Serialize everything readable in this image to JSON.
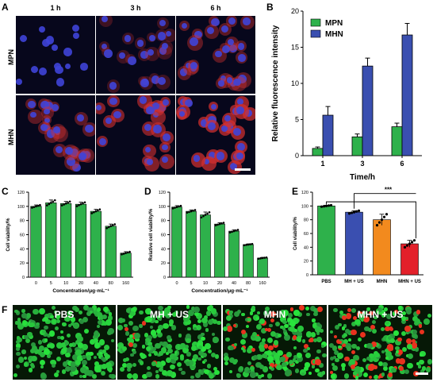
{
  "panels": {
    "A": {
      "label": "A",
      "columns": [
        "1 h",
        "3 h",
        "6 h"
      ],
      "rows": [
        "MPN",
        "MHN"
      ]
    },
    "B": {
      "label": "B"
    },
    "C": {
      "label": "C"
    },
    "D": {
      "label": "D"
    },
    "E": {
      "label": "E"
    },
    "F": {
      "label": "F",
      "columns": [
        "PBS",
        "MH + US",
        "MHN",
        "MHN + US"
      ]
    }
  },
  "colors": {
    "green": "#2eb14b",
    "blue": "#3a4fb0",
    "orange": "#f28a1e",
    "red": "#e3202a",
    "nucleus": "#3f44d8",
    "membrane": "#d43030"
  },
  "chart_data": [
    {
      "panel": "B",
      "type": "bar",
      "categories": [
        "1",
        "3",
        "6"
      ],
      "series": [
        {
          "name": "MPN",
          "color": "#2eb14b",
          "values": [
            1.0,
            2.6,
            4.0
          ],
          "errors": [
            0.2,
            0.4,
            0.5
          ]
        },
        {
          "name": "MHN",
          "color": "#3a4fb0",
          "values": [
            5.6,
            12.4,
            16.7
          ],
          "errors": [
            1.2,
            1.1,
            1.6
          ]
        }
      ],
      "xlabel": "Time/h",
      "ylabel": "Relative fluorescence intensity",
      "ylim": [
        0,
        20
      ],
      "yticks": [
        0,
        5,
        10,
        15,
        20
      ],
      "legend": "top-left"
    },
    {
      "panel": "C",
      "type": "bar",
      "categories": [
        "0",
        "5",
        "10",
        "20",
        "40",
        "80",
        "160"
      ],
      "values": [
        100,
        105,
        104,
        103,
        93,
        72,
        34
      ],
      "errors": [
        2,
        4,
        3,
        3,
        3,
        3,
        2
      ],
      "color": "#2eb14b",
      "xlabel": "Concentration/μg·mL⁻¹",
      "ylabel": "Cell viability/%",
      "ylim": [
        0,
        120
      ],
      "yticks": [
        0,
        20,
        40,
        60,
        80,
        100,
        120
      ]
    },
    {
      "panel": "D",
      "type": "bar",
      "categories": [
        "0",
        "5",
        "10",
        "20",
        "40",
        "80",
        "160"
      ],
      "values": [
        99,
        93,
        88,
        75,
        65,
        46,
        27
      ],
      "errors": [
        2,
        2,
        4,
        2,
        2,
        1,
        1
      ],
      "color": "#2eb14b",
      "xlabel": "Concentration/μg·mL⁻¹",
      "ylabel": "Relative cell viability/%",
      "ylim": [
        0,
        120
      ],
      "yticks": [
        0,
        20,
        40,
        60,
        80,
        100,
        120
      ]
    },
    {
      "panel": "E",
      "type": "bar",
      "categories": [
        "PBS",
        "MH + US",
        "MHN",
        "MHN + US"
      ],
      "values": [
        100,
        91,
        80,
        45
      ],
      "errors": [
        1,
        2,
        8,
        5
      ],
      "colors": [
        "#2eb14b",
        "#3a4fb0",
        "#f28a1e",
        "#e3202a"
      ],
      "ylabel": "Cell viability/%",
      "ylim": [
        0,
        120
      ],
      "yticks": [
        0,
        20,
        40,
        60,
        80,
        100,
        120
      ],
      "significance": "***"
    }
  ]
}
